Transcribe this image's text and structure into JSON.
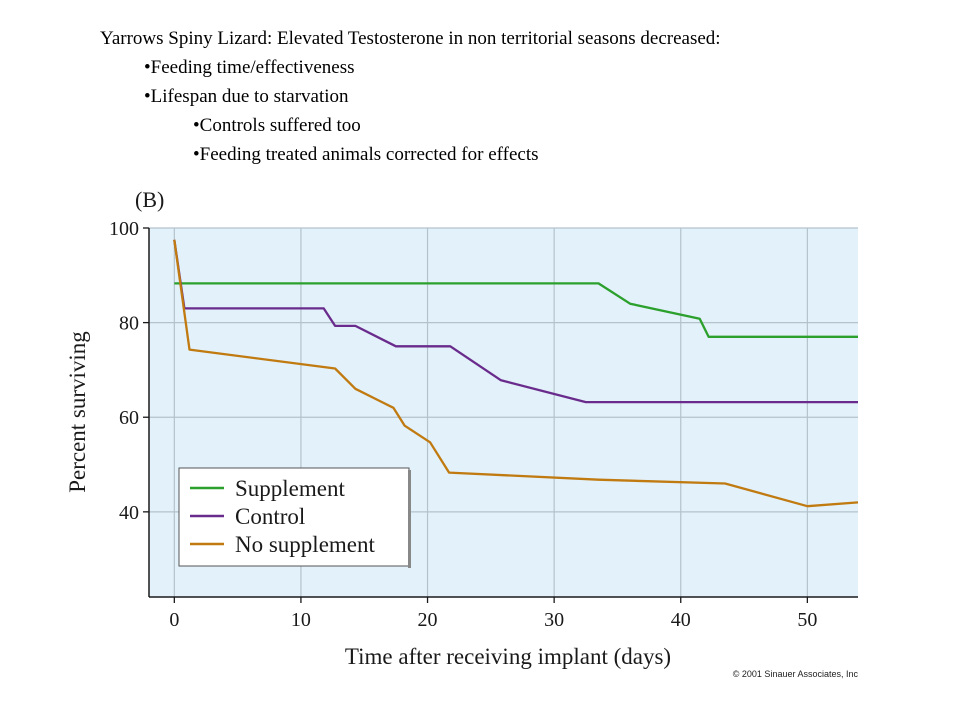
{
  "slide": {
    "title": "Yarrows Spiny Lizard: Elevated Testosterone in non territorial seasons decreased:",
    "bullets": [
      {
        "text": "•Feeding time/effectiveness",
        "level": 1
      },
      {
        "text": "•Lifespan due to starvation",
        "level": 1
      },
      {
        "text": "•Controls suffered too",
        "level": 2
      },
      {
        "text": "•Feeding treated animals corrected for effects",
        "level": 2
      }
    ]
  },
  "chart_data": {
    "type": "line",
    "panel_label": "(B)",
    "xlabel": "Time after receiving implant (days)",
    "ylabel": "Percent surviving",
    "xlim": [
      -2,
      54
    ],
    "ylim": [
      22,
      100
    ],
    "xticks": [
      "0",
      "10",
      "20",
      "30",
      "40",
      "50"
    ],
    "yticks": [
      "40",
      "60",
      "80",
      "100"
    ],
    "grid": true,
    "legend_position": "lower-left",
    "series": [
      {
        "name": "Supplement",
        "color": "#2ca02c",
        "points": [
          [
            0,
            88.3
          ],
          [
            31,
            88.3
          ],
          [
            33.5,
            88.3
          ],
          [
            36,
            84
          ],
          [
            41.5,
            80.8
          ],
          [
            42.2,
            77
          ],
          [
            54,
            77
          ]
        ]
      },
      {
        "name": "Control",
        "color": "#6a2c8c",
        "points": [
          [
            0,
            97.5
          ],
          [
            0.8,
            83
          ],
          [
            11.8,
            83
          ],
          [
            12.7,
            79.3
          ],
          [
            14.3,
            79.3
          ],
          [
            17.5,
            75
          ],
          [
            21.8,
            75
          ],
          [
            25.8,
            67.8
          ],
          [
            32.5,
            63.2
          ],
          [
            54,
            63.2
          ]
        ]
      },
      {
        "name": "No supplement",
        "color": "#c07a10",
        "points": [
          [
            0,
            97.5
          ],
          [
            1.2,
            74.3
          ],
          [
            12.7,
            70.3
          ],
          [
            14.3,
            66
          ],
          [
            17.3,
            62
          ],
          [
            18.2,
            58.2
          ],
          [
            20.2,
            54.7
          ],
          [
            21.7,
            48.3
          ],
          [
            33.5,
            46.8
          ],
          [
            43.5,
            46
          ],
          [
            50,
            41.2
          ],
          [
            54,
            42
          ]
        ]
      }
    ],
    "credit": "© 2001 Sinauer Associates, Inc"
  }
}
